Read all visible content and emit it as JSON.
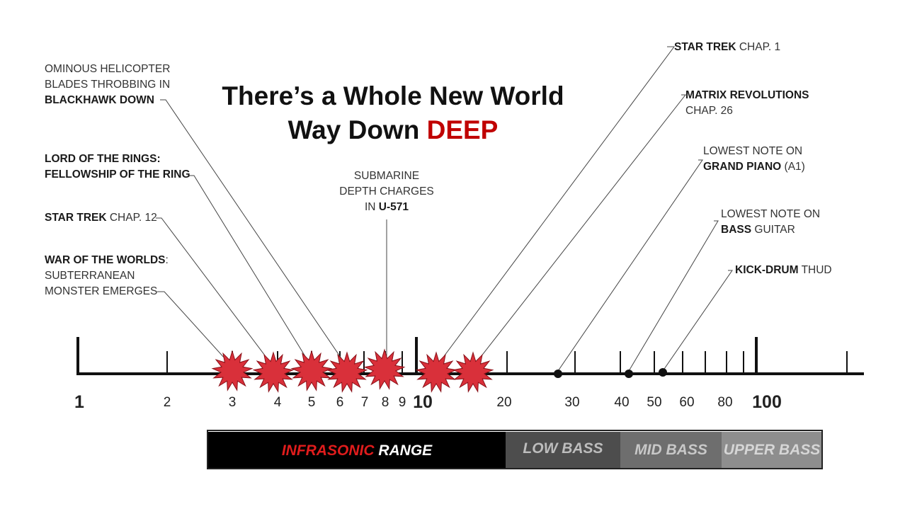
{
  "title": {
    "line1": "There’s a Whole New World",
    "line2_prefix": "Way Down ",
    "line2_accent": "DEEP"
  },
  "colors": {
    "accent": "#c00000",
    "burst": "#d9303a",
    "burst_stroke": "#8a1018"
  },
  "axis": {
    "tick_labels": {
      "t1": "1",
      "t2": "2",
      "t3": "3",
      "t4": "4",
      "t5": "5",
      "t6": "6",
      "t7": "7",
      "t8": "8",
      "t9": "9",
      "t10": "10",
      "t20": "20",
      "t30": "30",
      "t40": "40",
      "t50": "50",
      "t60": "60",
      "t80": "80",
      "t100": "100"
    }
  },
  "labels": {
    "war": {
      "bold": "WAR OF THE WORLDS",
      "tail": ":",
      "line2": "SUBTERRANEAN",
      "line3": "MONSTER EMERGES"
    },
    "startrek12": {
      "bold": "STAR TREK",
      "tail": " CHAP. 12"
    },
    "lotr": {
      "line1": "LORD OF THE RINGS:",
      "line2": "FELLOWSHIP OF THE RING"
    },
    "blackhawk": {
      "line1": "OMINOUS HELICOPTER",
      "line2": "BLADES THROBBING IN",
      "bold": "BLACKHAWK DOWN"
    },
    "submarine": {
      "line1": "SUBMARINE",
      "line2": "DEPTH CHARGES",
      "prefix": "IN ",
      "bold": "U-571"
    },
    "startrek1": {
      "bold": "STAR TREK",
      "tail": " CHAP. 1"
    },
    "matrix": {
      "bold": "MATRIX REVOLUTIONS",
      "line2": "CHAP. 26"
    },
    "piano": {
      "line1": "LOWEST NOTE ON",
      "bold": "GRAND PIANO",
      "tail": " (A1)"
    },
    "bass": {
      "line1": "LOWEST NOTE ON",
      "bold": "BASS",
      "tail": " GUITAR"
    },
    "kick": {
      "bold": "KICK-DRUM",
      "tail": " THUD"
    }
  },
  "ranges": {
    "infrasonic_red": "INFRASONIC",
    "infrasonic_white": " RANGE",
    "low_bass": "LOW BASS",
    "mid_bass": "MID BASS",
    "upper_bass": "UPPER BASS"
  }
}
